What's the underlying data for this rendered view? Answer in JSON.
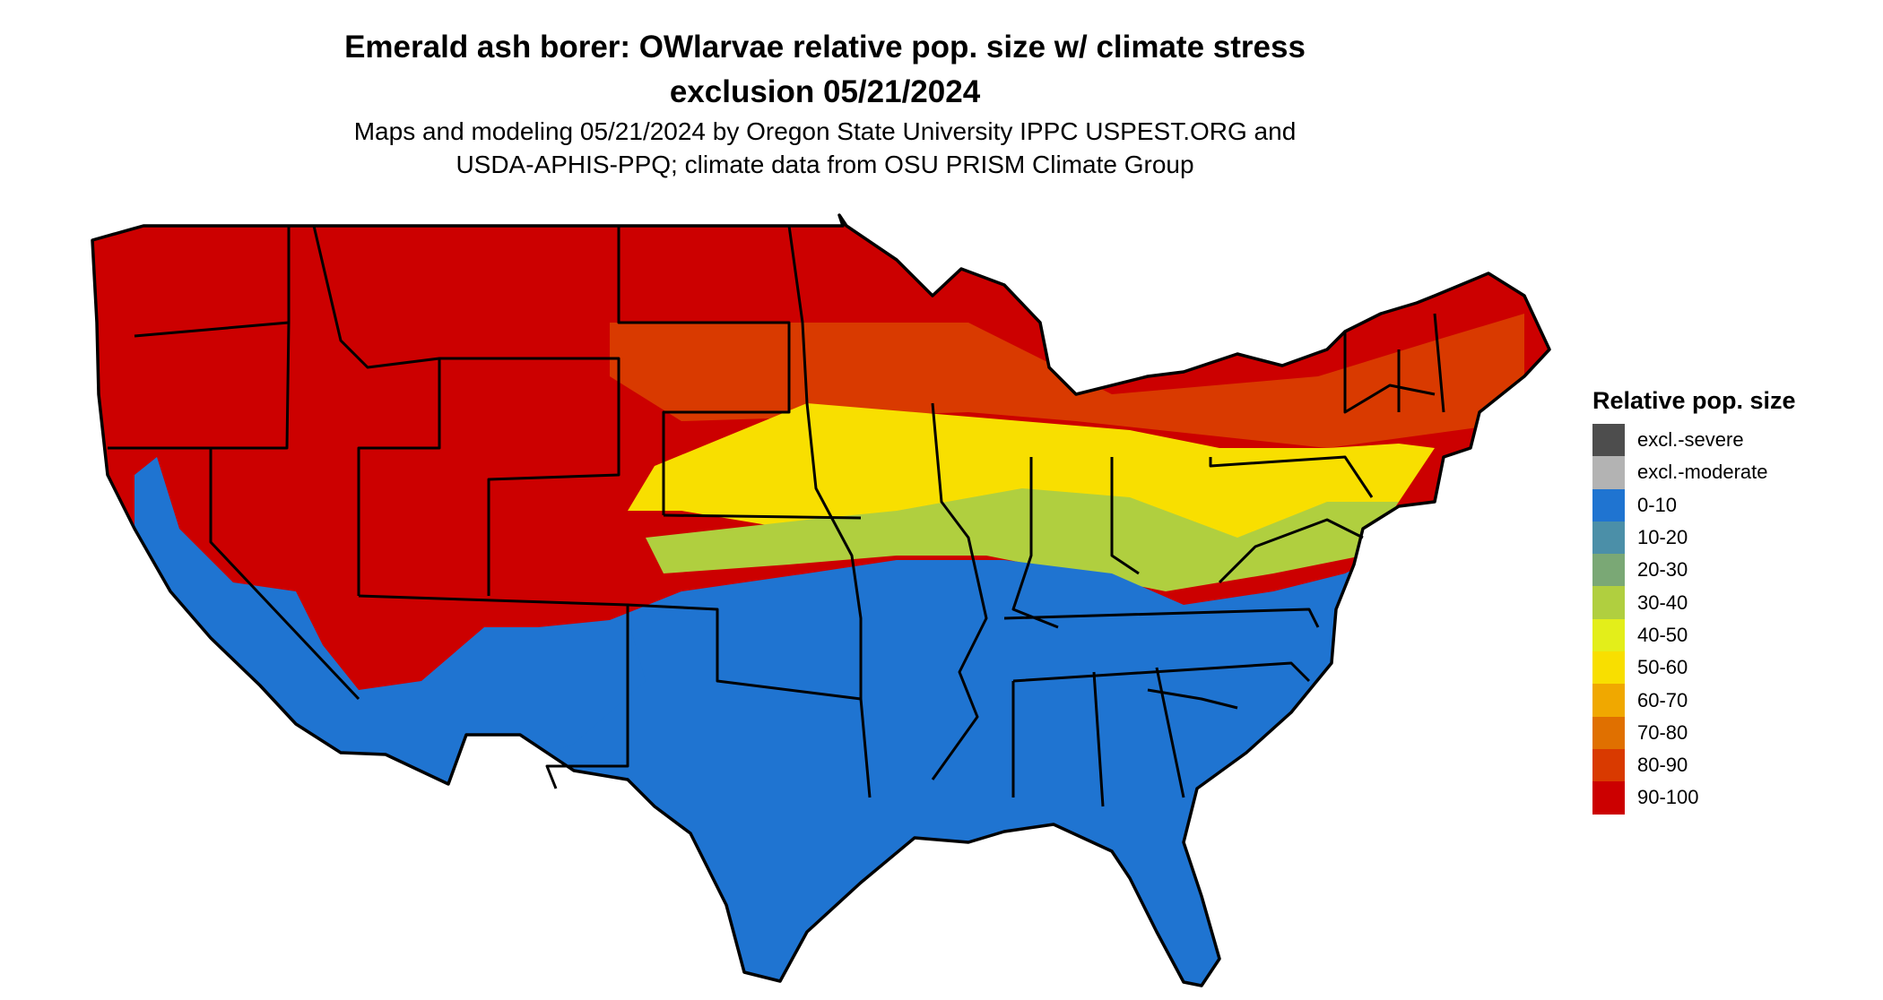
{
  "header": {
    "title_line1": "Emerald ash borer: OWlarvae relative pop. size w/ climate stress",
    "title_line2": "exclusion 05/21/2024",
    "subtitle_line1": "Maps and modeling 05/21/2024 by Oregon State University IPPC USPEST.ORG and",
    "subtitle_line2": "USDA-APHIS-PPQ; climate data from OSU PRISM Climate Group"
  },
  "legend": {
    "title": "Relative pop. size",
    "items": [
      {
        "label": "excl.-severe",
        "color": "#4d4d4d"
      },
      {
        "label": "excl.-moderate",
        "color": "#b3b3b3"
      },
      {
        "label": "0-10",
        "color": "#1f74d1"
      },
      {
        "label": "10-20",
        "color": "#4b8fa8"
      },
      {
        "label": "20-30",
        "color": "#7aa875"
      },
      {
        "label": "30-40",
        "color": "#b0cf3f"
      },
      {
        "label": "40-50",
        "color": "#e3ee1a"
      },
      {
        "label": "50-60",
        "color": "#f8df00"
      },
      {
        "label": "60-70",
        "color": "#f0a800"
      },
      {
        "label": "70-80",
        "color": "#e07000"
      },
      {
        "label": "80-90",
        "color": "#d93a00"
      },
      {
        "label": "90-100",
        "color": "#cc0000"
      }
    ]
  },
  "map": {
    "region": "conterminous United States",
    "colors": {
      "high": "#cc0000",
      "north_band": "#d93a00",
      "mid": "#f8df00",
      "transition": "#b0cf3f",
      "low": "#1f74d1",
      "border": "#000000"
    }
  }
}
